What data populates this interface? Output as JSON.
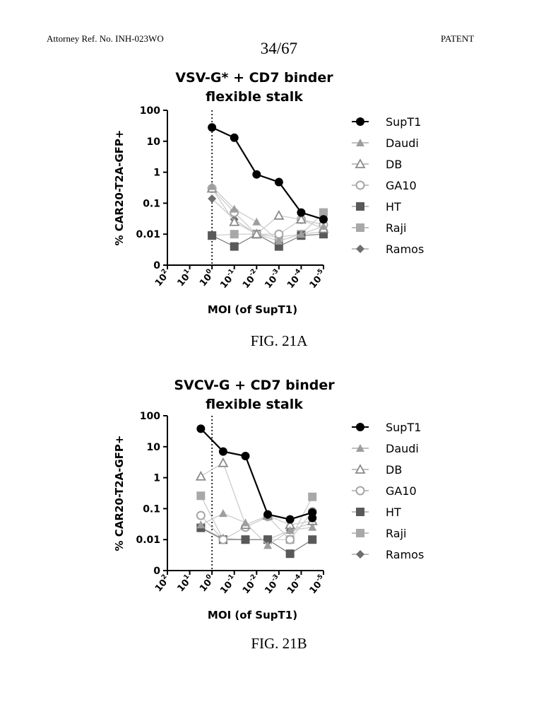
{
  "header": {
    "attorney_ref": "Attorney Ref. No. INH-023WO",
    "patent_label": "PATENT",
    "page_number": "34/67"
  },
  "colors": {
    "SupT1": "#000000",
    "Daudi": "#9e9e9e",
    "DB": "#8a8a8a",
    "GA10": "#a6a6a6",
    "HT": "#595959",
    "Raji": "#a8a8a8",
    "Ramos": "#6e6e6e",
    "connector_light": "#c8c8c8"
  },
  "chart_data": [
    {
      "type": "line",
      "figure_label": "FIG. 21A",
      "title_lines": [
        "VSV-G* + CD7 binder",
        "flexible stalk"
      ],
      "xlabel": "MOI (of SupT1)",
      "ylabel": "% CAR20-T2A-GFP+",
      "x_tick_labels": [
        {
          "base": "10",
          "exp": "2"
        },
        {
          "base": "10",
          "exp": "1"
        },
        {
          "base": "10",
          "exp": "0"
        },
        {
          "base": "10",
          "exp": "-1"
        },
        {
          "base": "10",
          "exp": "-2"
        },
        {
          "base": "10",
          "exp": "-3"
        },
        {
          "base": "10",
          "exp": "-4"
        },
        {
          "base": "10",
          "exp": "-5"
        }
      ],
      "y_tick_labels": [
        "100",
        "10",
        "1",
        "0.1",
        "0.01",
        "0"
      ],
      "x_log_range": [
        2,
        -5
      ],
      "y_axis": "log, 0.01–100 with 0 shown at bottom",
      "vline_at_log_moi": 0,
      "series": [
        {
          "name": "SupT1",
          "marker": "circle",
          "x": [
            0,
            -1,
            -2,
            -3,
            -4,
            -5
          ],
          "y": [
            28,
            13,
            0.85,
            0.48,
            0.05,
            0.03
          ]
        },
        {
          "name": "Daudi",
          "marker": "triangle",
          "x": [
            0,
            -1,
            -2,
            -3,
            -4,
            -5
          ],
          "y": [
            0.35,
            0.065,
            0.025,
            0.006,
            0.01,
            0.018
          ]
        },
        {
          "name": "DB",
          "marker": "triangle-open",
          "x": [
            0,
            -1,
            -2,
            -3,
            -4,
            -5
          ],
          "y": [
            0.3,
            0.025,
            0.01,
            0.04,
            0.03,
            0.015
          ]
        },
        {
          "name": "GA10",
          "marker": "circle-open",
          "x": [
            0,
            -1,
            -2,
            -3,
            -4,
            -5
          ],
          "y": [
            0.3,
            0.05,
            0.01,
            0.01,
            0.03,
            0.02
          ]
        },
        {
          "name": "HT",
          "marker": "square",
          "x": [
            0,
            -1,
            -2,
            -3,
            -4,
            -5
          ],
          "y": [
            0.009,
            0.004,
            0.01,
            0.004,
            0.009,
            0.01
          ]
        },
        {
          "name": "Raji",
          "marker": "square-light",
          "x": [
            0,
            -1,
            -2,
            -3,
            -4,
            -5
          ],
          "y": [
            0.009,
            0.01,
            0.01,
            0.006,
            0.01,
            0.05
          ]
        },
        {
          "name": "Ramos",
          "marker": "diamond",
          "x": [
            0,
            -1,
            -2,
            -3,
            -4,
            -5
          ],
          "y": [
            0.14,
            0.03,
            0.01,
            0.008,
            0.01,
            0.012
          ]
        }
      ],
      "legend": [
        "SupT1",
        "Daudi",
        "DB",
        "GA10",
        "HT",
        "Raji",
        "Ramos"
      ],
      "legend_position": "right"
    },
    {
      "type": "line",
      "figure_label": "FIG. 21B",
      "title_lines": [
        "SVCV-G + CD7 binder",
        "flexible stalk"
      ],
      "xlabel": "MOI (of SupT1)",
      "ylabel": "% CAR20-T2A-GFP+",
      "x_tick_labels": [
        {
          "base": "10",
          "exp": "2"
        },
        {
          "base": "10",
          "exp": "1"
        },
        {
          "base": "10",
          "exp": "0"
        },
        {
          "base": "10",
          "exp": "-1"
        },
        {
          "base": "10",
          "exp": "-2"
        },
        {
          "base": "10",
          "exp": "-3"
        },
        {
          "base": "10",
          "exp": "-4"
        },
        {
          "base": "10",
          "exp": "-5"
        }
      ],
      "y_tick_labels": [
        "100",
        "10",
        "1",
        "0.1",
        "0.01",
        "0"
      ],
      "x_log_range": [
        2,
        -5
      ],
      "y_axis": "log, 0.01–100 with 0 shown at bottom",
      "vline_at_log_moi": 0,
      "series": [
        {
          "name": "SupT1",
          "marker": "circle",
          "x": [
            0.5,
            -0.5,
            -1.5,
            -2.5,
            -3.5,
            -4.5,
            -4.5
          ],
          "y": [
            38,
            7,
            5,
            0.065,
            0.045,
            0.075,
            0.05
          ]
        },
        {
          "name": "Daudi",
          "marker": "triangle",
          "x": [
            0.5,
            -0.5,
            -1.5,
            -2.5,
            -3.5,
            -4.5
          ],
          "y": [
            0.03,
            0.07,
            0.035,
            0.0065,
            0.02,
            0.025
          ]
        },
        {
          "name": "DB",
          "marker": "triangle-open",
          "x": [
            0.5,
            -0.5,
            -1.5,
            -2.5,
            -3.5,
            -4.5
          ],
          "y": [
            1.1,
            3,
            0.03,
            0.06,
            0.03,
            0.04
          ]
        },
        {
          "name": "GA10",
          "marker": "circle-open",
          "x": [
            0.5,
            -0.5,
            -1.5,
            -2.5,
            -3.5,
            -4.5
          ],
          "y": [
            0.06,
            0.01,
            0.025,
            0.055,
            0.01,
            0.08
          ]
        },
        {
          "name": "HT",
          "marker": "square",
          "x": [
            0.5,
            -0.5,
            -1.5,
            -2.5,
            -3.5,
            -4.5
          ],
          "y": [
            0.024,
            0.01,
            0.01,
            0.01,
            0.0035,
            0.01
          ]
        },
        {
          "name": "Raji",
          "marker": "square-light",
          "x": [
            0.5,
            -0.5,
            -1.5,
            -2.5,
            -3.5,
            -4.5
          ],
          "y": [
            0.26,
            0.01,
            0.01,
            0.01,
            0.01,
            0.24
          ]
        },
        {
          "name": "Ramos",
          "marker": "diamond",
          "x": [
            0.5,
            -0.5,
            -1.5,
            -2.5,
            -3.5,
            -4.5
          ],
          "y": [
            0.025,
            0.011,
            0.01,
            0.01,
            0.02,
            0.035
          ]
        }
      ],
      "legend": [
        "SupT1",
        "Daudi",
        "DB",
        "GA10",
        "HT",
        "Raji",
        "Ramos"
      ],
      "legend_position": "right"
    }
  ]
}
